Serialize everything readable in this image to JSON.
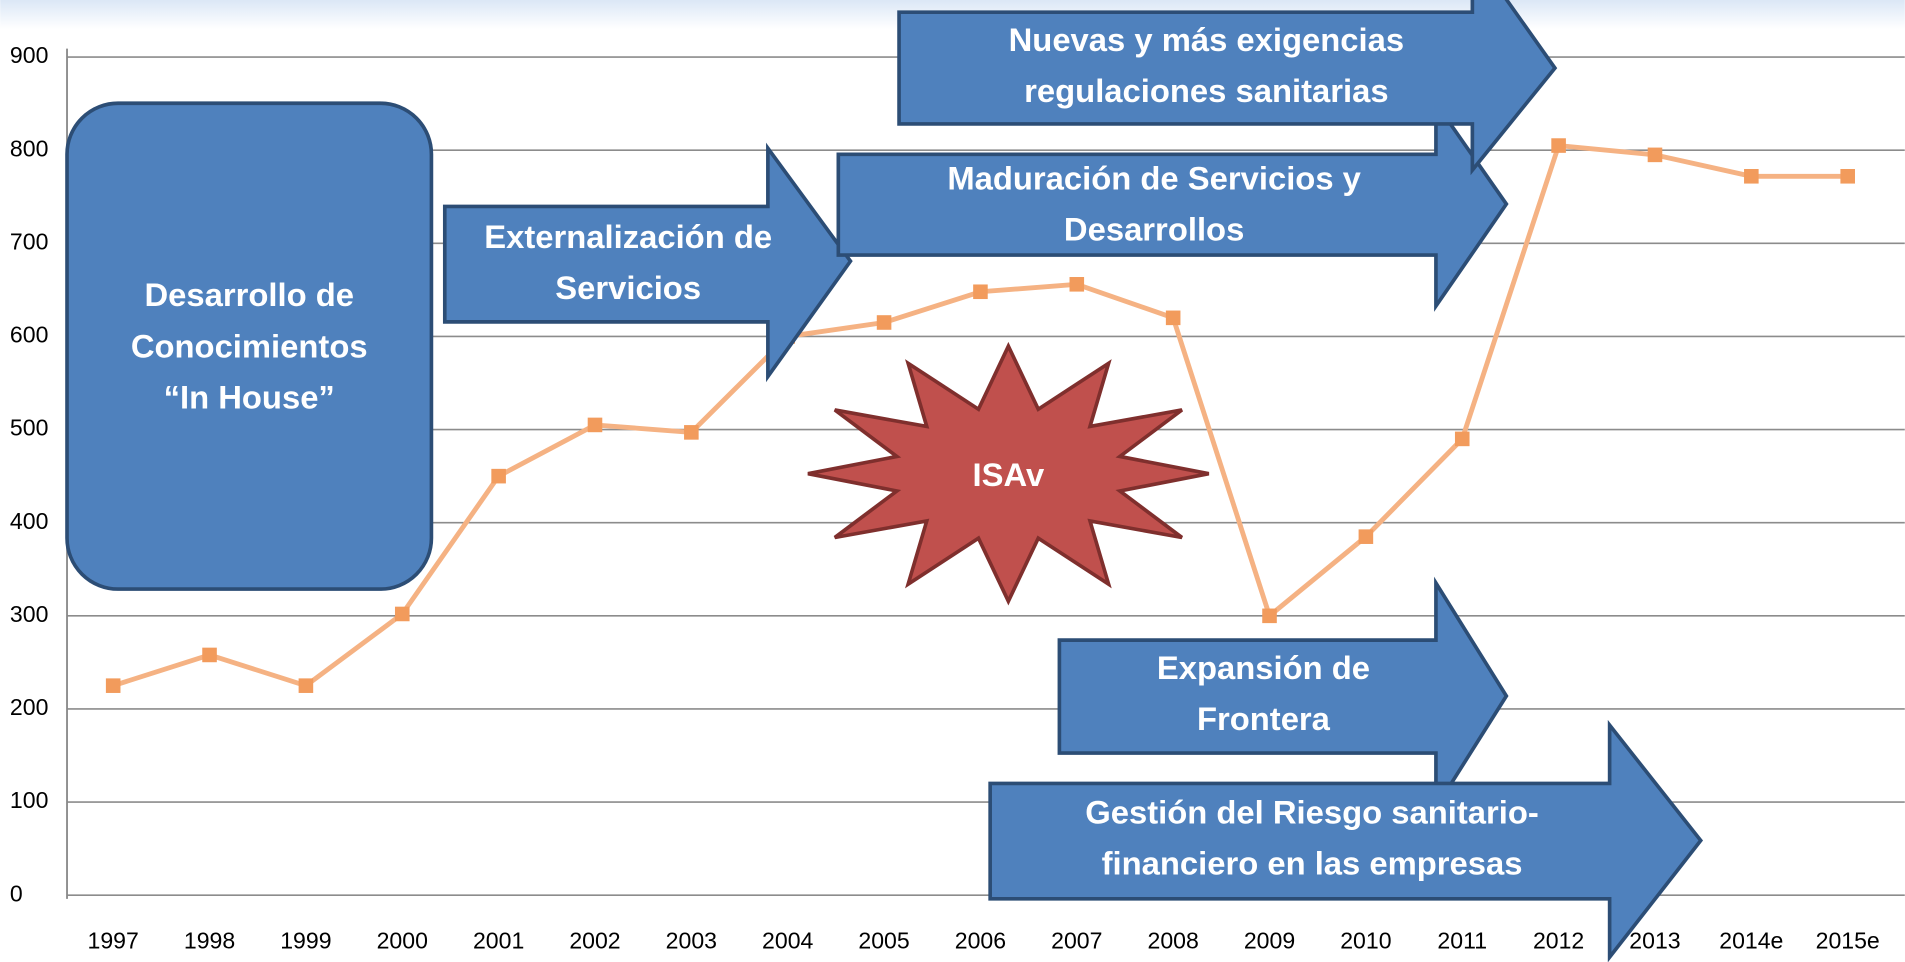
{
  "chart_data": {
    "type": "line",
    "categories": [
      "1997",
      "1998",
      "1999",
      "2000",
      "2001",
      "2002",
      "2003",
      "2004",
      "2005",
      "2006",
      "2007",
      "2008",
      "2009",
      "2010",
      "2011",
      "2012",
      "2013",
      "2014e",
      "2015e"
    ],
    "values": [
      225,
      258,
      225,
      302,
      450,
      505,
      497,
      600,
      615,
      648,
      656,
      620,
      300,
      385,
      490,
      805,
      795,
      772,
      772
    ],
    "color": "#f5b283",
    "marker_color": "#f29b5c",
    "ylim": [
      0,
      900
    ],
    "yticks": [
      0,
      100,
      200,
      300,
      400,
      500,
      600,
      700,
      800,
      900
    ],
    "grid": true,
    "annotations": [
      [
        "Desarrollo de",
        "Conocimientos",
        "“In House”"
      ],
      [
        "Externalización de",
        "Servicios"
      ],
      [
        "Maduración de Servicios y",
        "Desarrollos"
      ],
      [
        "Nuevas y más exigencias",
        "regulaciones sanitarias"
      ],
      [
        "ISAv"
      ],
      [
        "Expansión de",
        "Frontera"
      ],
      [
        "Gestión del Riesgo sanitario-",
        "financiero en las empresas"
      ]
    ]
  }
}
